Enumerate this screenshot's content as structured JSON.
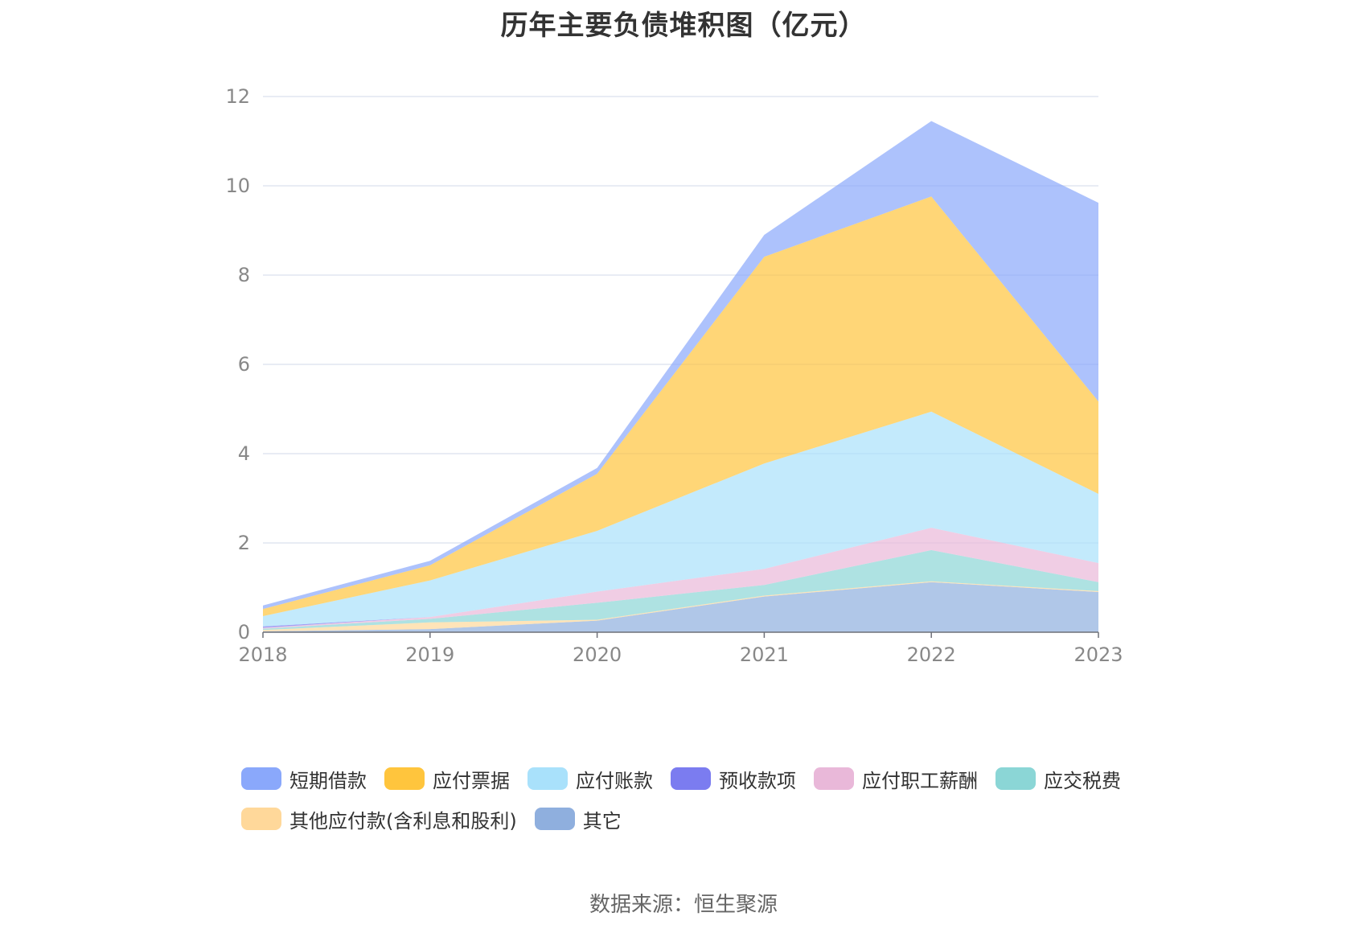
{
  "chart_data": {
    "type": "area",
    "stacked": true,
    "title": "历年主要负债堆积图（亿元）",
    "x": [
      "2018",
      "2019",
      "2020",
      "2021",
      "2022",
      "2023"
    ],
    "ylim": [
      0,
      12
    ],
    "yticks": [
      0,
      2,
      4,
      6,
      8,
      10,
      12
    ],
    "grid": true,
    "legend_position": "bottom",
    "series": [
      {
        "name": "其它",
        "color": "#8fafde",
        "values": [
          0.02,
          0.07,
          0.26,
          0.8,
          1.12,
          0.9
        ]
      },
      {
        "name": "其他应付款(含利息和股利)",
        "color": "#ffd89a",
        "values": [
          0.03,
          0.15,
          0.02,
          0.02,
          0.02,
          0.02
        ]
      },
      {
        "name": "应交税费",
        "color": "#8bd6d6",
        "values": [
          0.03,
          0.08,
          0.38,
          0.24,
          0.7,
          0.2
        ]
      },
      {
        "name": "应付职工薪酬",
        "color": "#e9b8d9",
        "values": [
          0.02,
          0.04,
          0.25,
          0.36,
          0.5,
          0.43
        ]
      },
      {
        "name": "预收款项",
        "color": "#7b7cf0",
        "values": [
          0.03,
          0.0,
          0.0,
          0.0,
          0.0,
          0.0
        ]
      },
      {
        "name": "应付账款",
        "color": "#a9e1fb",
        "values": [
          0.23,
          0.82,
          1.36,
          2.36,
          2.6,
          1.55
        ]
      },
      {
        "name": "应付票据",
        "color": "#ffc53d",
        "values": [
          0.16,
          0.34,
          1.28,
          4.63,
          4.82,
          2.07
        ]
      },
      {
        "name": "短期借款",
        "color": "#8aa8fb",
        "values": [
          0.08,
          0.1,
          0.13,
          0.49,
          1.69,
          4.45
        ]
      }
    ],
    "legend_order": [
      "短期借款",
      "应付票据",
      "应付账款",
      "预收款项",
      "应付职工薪酬",
      "应交税费",
      "其他应付款(含利息和股利)",
      "其它"
    ]
  },
  "source_text": "数据来源：恒生聚源"
}
